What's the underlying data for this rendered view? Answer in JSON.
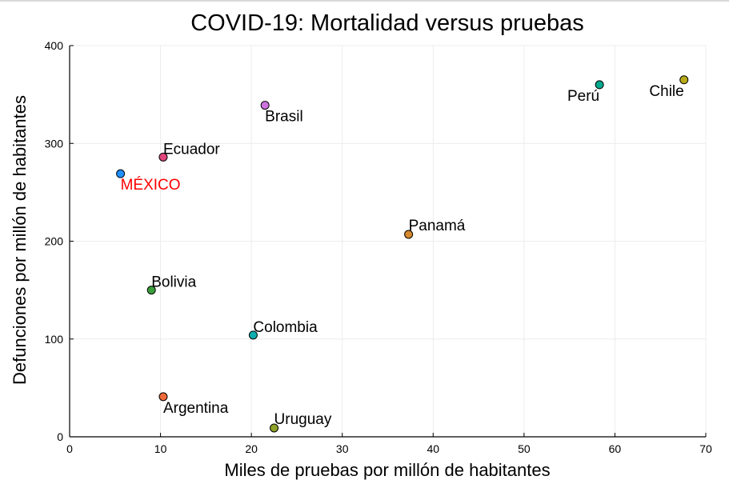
{
  "chart_data": {
    "type": "scatter",
    "title": "COVID-19: Mortalidad versus pruebas",
    "xlabel": "Miles de pruebas por millón de habitantes",
    "ylabel": "Defunciones por millón de habitantes",
    "xlim": [
      0,
      70
    ],
    "ylim": [
      0,
      400
    ],
    "xticks": [
      "0",
      "10",
      "20",
      "30",
      "40",
      "50",
      "60",
      "70"
    ],
    "yticks": [
      "0",
      "100",
      "200",
      "300",
      "400"
    ],
    "grid": true,
    "points": [
      {
        "label": "México",
        "display": "MÉXICO",
        "x": 5.6,
        "y": 269,
        "color": "#1e90ff",
        "label_color": "#ff0000"
      },
      {
        "label": "Ecuador",
        "display": "Ecuador",
        "x": 10.3,
        "y": 286,
        "color": "#e0457b",
        "label_color": "#000000"
      },
      {
        "label": "Brasil",
        "display": "Brasil",
        "x": 21.5,
        "y": 339,
        "color": "#cc73de",
        "label_color": "#000000"
      },
      {
        "label": "Perú",
        "display": "Perú",
        "x": 58.3,
        "y": 360,
        "color": "#00a98f",
        "label_color": "#000000"
      },
      {
        "label": "Chile",
        "display": "Chile",
        "x": 67.6,
        "y": 365,
        "color": "#b8a91a",
        "label_color": "#000000"
      },
      {
        "label": "Panamá",
        "display": "Panamá",
        "x": 37.3,
        "y": 207,
        "color": "#d68a2c",
        "label_color": "#000000"
      },
      {
        "label": "Bolivia",
        "display": "Bolivia",
        "x": 9.0,
        "y": 150,
        "color": "#3a9f3a",
        "label_color": "#000000"
      },
      {
        "label": "Colombia",
        "display": "Colombia",
        "x": 20.2,
        "y": 104,
        "color": "#10aeae",
        "label_color": "#000000"
      },
      {
        "label": "Argentina",
        "display": "Argentina",
        "x": 10.3,
        "y": 41,
        "color": "#ee6a3a",
        "label_color": "#000000"
      },
      {
        "label": "Uruguay",
        "display": "Uruguay",
        "x": 22.5,
        "y": 9,
        "color": "#8ea12a",
        "label_color": "#000000"
      }
    ]
  }
}
